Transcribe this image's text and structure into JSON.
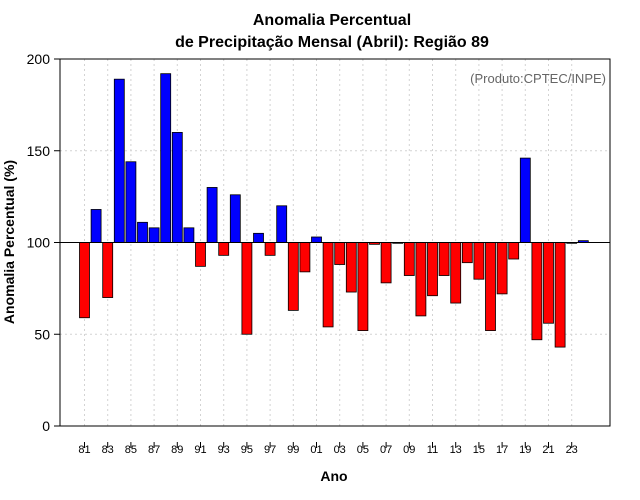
{
  "chart_data": {
    "type": "bar",
    "title_line1": "Anomalia Percentual",
    "title_line2": "de Precipitação Mensal (Abril): Região 89",
    "xlabel": "Ano",
    "ylabel": "Anomalia Percentual (%)",
    "credit": "(Produto:CPTEC/INPE)",
    "baseline": 100,
    "ylim": [
      0,
      200
    ],
    "yticks": [
      0,
      50,
      100,
      150,
      200
    ],
    "xtick_labels": [
      "81",
      "83",
      "85",
      "87",
      "89",
      "91",
      "93",
      "95",
      "97",
      "99",
      "01",
      "03",
      "05",
      "07",
      "09",
      "11",
      "13",
      "15",
      "17",
      "19",
      "21",
      "23"
    ],
    "categories": [
      "1981",
      "1982",
      "1983",
      "1984",
      "1985",
      "1986",
      "1987",
      "1988",
      "1989",
      "1990",
      "1991",
      "1992",
      "1993",
      "1994",
      "1995",
      "1996",
      "1997",
      "1998",
      "1999",
      "2000",
      "2001",
      "2002",
      "2003",
      "2004",
      "2005",
      "2006",
      "2007",
      "2008",
      "2009",
      "2010",
      "2011",
      "2012",
      "2013",
      "2014",
      "2015",
      "2016",
      "2017",
      "2018",
      "2019",
      "2020",
      "2021",
      "2022",
      "2023",
      "2024"
    ],
    "values": [
      59,
      118,
      70,
      189,
      144,
      111,
      108,
      192,
      160,
      108,
      87,
      130,
      93,
      126,
      50,
      105,
      93,
      120,
      63,
      84,
      103,
      54,
      88,
      73,
      52,
      99,
      78,
      100,
      82,
      60,
      71,
      82,
      67,
      89,
      80,
      52,
      72,
      91,
      146,
      47,
      56,
      43,
      100,
      101
    ],
    "colors": {
      "above": "#0000ff",
      "below": "#ff0000",
      "grid": "#d3d3d3"
    }
  }
}
